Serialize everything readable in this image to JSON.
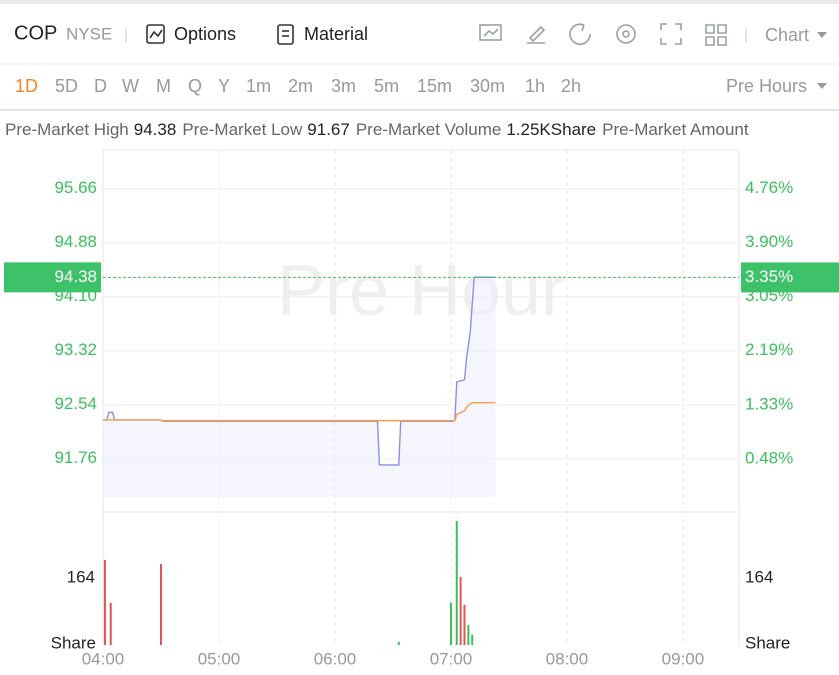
{
  "toolbar": {
    "symbol": "COP",
    "exchange": "NYSE",
    "options": "Options",
    "material": "Material",
    "chart_menu": "Chart"
  },
  "periods": {
    "items": [
      "1D",
      "5D",
      "D",
      "W",
      "M",
      "Q",
      "Y",
      "1m",
      "2m",
      "3m",
      "5m",
      "15m",
      "30m",
      "1h",
      "2h"
    ],
    "active": 0,
    "session": "Pre Hours"
  },
  "stats": [
    {
      "label": "Pre-Market High",
      "value": "94.38"
    },
    {
      "label": "Pre-Market Low",
      "value": "91.67"
    },
    {
      "label": "Pre-Market Volume",
      "value": "1.25KShare"
    },
    {
      "label": "Pre-Market Amount",
      "value": ""
    }
  ],
  "chart_data": [
    {
      "type": "line",
      "watermark": "Pre Hour",
      "x": [
        240,
        242,
        243,
        245,
        246,
        270,
        271,
        382,
        383,
        393,
        394,
        421,
        422,
        423,
        427,
        428,
        430,
        431,
        432,
        443
      ],
      "xlim": [
        240,
        569
      ],
      "xticks": [
        {
          "value": 240,
          "label": "04:00"
        },
        {
          "value": 300,
          "label": "05:00"
        },
        {
          "value": 360,
          "label": "06:00"
        },
        {
          "value": 420,
          "label": "07:00"
        },
        {
          "value": 480,
          "label": "08:00"
        },
        {
          "value": 540,
          "label": "09:00"
        }
      ],
      "series": [
        {
          "name": "Price",
          "color": "#8c90e0",
          "values": [
            92.32,
            92.32,
            92.43,
            92.43,
            92.32,
            92.32,
            92.3,
            92.3,
            91.67,
            91.67,
            92.3,
            92.3,
            92.32,
            92.87,
            92.9,
            93.2,
            93.6,
            94.0,
            94.38,
            94.38
          ]
        },
        {
          "name": "Average",
          "color": "#f5a04a",
          "values": [
            92.32,
            92.32,
            92.32,
            92.32,
            92.32,
            92.32,
            92.31,
            92.31,
            92.31,
            92.31,
            92.31,
            92.31,
            92.31,
            92.4,
            92.45,
            92.5,
            92.55,
            92.57,
            92.57,
            92.57
          ]
        }
      ],
      "ylim": [
        90.99,
        96.22
      ],
      "yticks": [
        91.76,
        92.54,
        93.32,
        {
          "value": 94.1,
          "label": "94.10"
        },
        94.88,
        95.66
      ],
      "y2lim": [
        -0.361,
        5.366
      ],
      "y2ticks": [
        {
          "value": 0.48,
          "label": "0.48%"
        },
        {
          "value": 1.33,
          "label": "1.33%"
        },
        {
          "value": 2.19,
          "label": "2.19%"
        },
        {
          "value": 3.05,
          "label": "3.05%"
        },
        {
          "value": 3.9,
          "label": "3.90%"
        },
        {
          "value": 4.76,
          "label": "4.76%"
        }
      ],
      "current": 94.38,
      "current_change": {
        "value": 3.35,
        "label": "3.35%"
      },
      "tick_color": "#3bbf5c",
      "grid": true
    },
    {
      "type": "bar",
      "y_label": "Share",
      "x": [
        241,
        244,
        270,
        393,
        420,
        423,
        425,
        427,
        429,
        431
      ],
      "xlim": [
        240,
        569
      ],
      "values": [
        208,
        103,
        198,
        8,
        103,
        303,
        166,
        98,
        49,
        25
      ],
      "colors": [
        "#e05555",
        "#e05555",
        "#e05555",
        "#3bbf5c",
        "#3bbf5c",
        "#3bbf5c",
        "#e05555",
        "#e05555",
        "#3bbf5c",
        "#3bbf5c"
      ],
      "ylim": [
        0,
        325
      ],
      "yticks": [
        164
      ]
    }
  ]
}
